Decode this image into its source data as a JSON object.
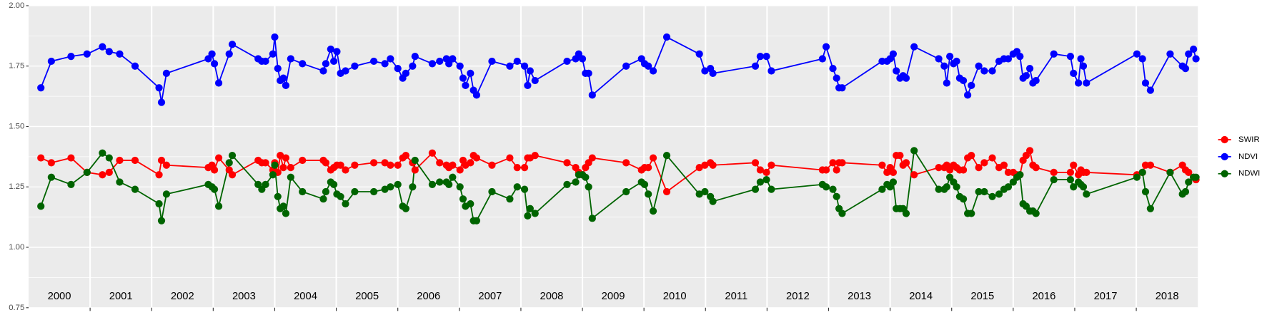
{
  "chart_data": {
    "type": "line",
    "xlim": [
      2000,
      2019
    ],
    "xticks": [
      2001,
      2002,
      2003,
      2004,
      2005,
      2006,
      2007,
      2008,
      2009,
      2010,
      2011,
      2012,
      2013,
      2014,
      2015,
      2016,
      2017,
      2018
    ],
    "year_labels": [
      "2000",
      "2001",
      "2002",
      "2003",
      "2004",
      "2005",
      "2006",
      "2007",
      "2008",
      "2009",
      "2010",
      "2011",
      "2012",
      "2013",
      "2014",
      "2015",
      "2016",
      "2017",
      "2018"
    ],
    "ylim": [
      0.75,
      2.0
    ],
    "yticks": [
      {
        "value": 0.75,
        "label": "0.75"
      },
      {
        "value": 1.0,
        "label": "1.00"
      },
      {
        "value": 1.25,
        "label": "1.25"
      },
      {
        "value": 1.5,
        "label": "1.50"
      },
      {
        "value": 1.75,
        "label": "1.75"
      },
      {
        "value": 2.0,
        "label": "2.00"
      }
    ],
    "grid": true,
    "legend": "right",
    "x": [
      2000.2,
      2000.37,
      2000.69,
      2000.95,
      2001.2,
      2001.31,
      2001.48,
      2001.73,
      2002.12,
      2002.16,
      2002.24,
      2002.92,
      2002.98,
      2003.02,
      2003.09,
      2003.26,
      2003.31,
      2003.73,
      2003.79,
      2003.85,
      2003.97,
      2004.0,
      2004.05,
      2004.09,
      2004.14,
      2004.18,
      2004.26,
      2004.45,
      2004.79,
      2004.83,
      2004.91,
      2004.96,
      2005.01,
      2005.07,
      2005.15,
      2005.3,
      2005.61,
      2005.79,
      2005.88,
      2006.0,
      2006.08,
      2006.13,
      2006.24,
      2006.28,
      2006.56,
      2006.68,
      2006.79,
      2006.83,
      2006.89,
      2007.01,
      2007.06,
      2007.1,
      2007.18,
      2007.23,
      2007.28,
      2007.53,
      2007.82,
      2007.94,
      2008.06,
      2008.11,
      2008.15,
      2008.23,
      2008.75,
      2008.89,
      2008.94,
      2009.0,
      2009.05,
      2009.1,
      2009.16,
      2009.71,
      2009.96,
      2010.01,
      2010.07,
      2010.15,
      2010.37,
      2010.9,
      2010.99,
      2011.08,
      2011.12,
      2011.81,
      2011.89,
      2011.99,
      2012.07,
      2012.9,
      2012.96,
      2013.07,
      2013.13,
      2013.17,
      2013.22,
      2013.87,
      2013.95,
      2014.0,
      2014.05,
      2014.1,
      2014.16,
      2014.21,
      2014.26,
      2014.39,
      2014.79,
      2014.88,
      2014.92,
      2014.97,
      2015.03,
      2015.08,
      2015.13,
      2015.19,
      2015.26,
      2015.32,
      2015.44,
      2015.53,
      2015.66,
      2015.77,
      2015.85,
      2015.92,
      2016.0,
      2016.06,
      2016.11,
      2016.16,
      2016.21,
      2016.27,
      2016.32,
      2016.37,
      2016.66,
      2016.93,
      2016.98,
      2017.06,
      2017.1,
      2017.14,
      2017.19,
      2018.01,
      2018.1,
      2018.15,
      2018.23,
      2018.55,
      2018.75,
      2018.8,
      2018.85,
      2018.93,
      2018.97
    ],
    "series": [
      {
        "name": "SWIR",
        "color": "#ff0000",
        "values": [
          1.37,
          1.35,
          1.37,
          1.31,
          1.3,
          1.31,
          1.36,
          1.36,
          1.3,
          1.36,
          1.34,
          1.33,
          1.34,
          1.32,
          1.37,
          1.32,
          1.3,
          1.36,
          1.35,
          1.35,
          1.32,
          1.35,
          1.31,
          1.38,
          1.33,
          1.37,
          1.33,
          1.36,
          1.36,
          1.35,
          1.32,
          1.33,
          1.34,
          1.34,
          1.32,
          1.34,
          1.35,
          1.35,
          1.34,
          1.34,
          1.37,
          1.38,
          1.35,
          1.32,
          1.39,
          1.35,
          1.34,
          1.33,
          1.34,
          1.32,
          1.36,
          1.34,
          1.35,
          1.38,
          1.37,
          1.34,
          1.37,
          1.33,
          1.33,
          1.37,
          1.37,
          1.38,
          1.35,
          1.33,
          1.31,
          1.3,
          1.33,
          1.35,
          1.37,
          1.35,
          1.32,
          1.33,
          1.33,
          1.37,
          1.23,
          1.33,
          1.34,
          1.35,
          1.34,
          1.35,
          1.32,
          1.31,
          1.34,
          1.32,
          1.32,
          1.35,
          1.32,
          1.35,
          1.35,
          1.34,
          1.31,
          1.33,
          1.31,
          1.38,
          1.38,
          1.34,
          1.35,
          1.3,
          1.33,
          1.33,
          1.34,
          1.32,
          1.34,
          1.33,
          1.32,
          1.32,
          1.37,
          1.38,
          1.33,
          1.35,
          1.37,
          1.33,
          1.34,
          1.31,
          1.31,
          1.3,
          1.3,
          1.36,
          1.38,
          1.4,
          1.34,
          1.33,
          1.31,
          1.31,
          1.34,
          1.3,
          1.32,
          1.31,
          1.31,
          1.3,
          1.31,
          1.34,
          1.34,
          1.31,
          1.34,
          1.32,
          1.31,
          1.29,
          1.28
        ]
      },
      {
        "name": "NDVI",
        "color": "#0000ff",
        "values": [
          1.66,
          1.77,
          1.79,
          1.8,
          1.83,
          1.81,
          1.8,
          1.75,
          1.66,
          1.6,
          1.72,
          1.78,
          1.8,
          1.76,
          1.68,
          1.8,
          1.84,
          1.78,
          1.77,
          1.77,
          1.8,
          1.87,
          1.74,
          1.69,
          1.7,
          1.67,
          1.78,
          1.76,
          1.73,
          1.76,
          1.82,
          1.77,
          1.81,
          1.72,
          1.73,
          1.75,
          1.77,
          1.76,
          1.78,
          1.74,
          1.7,
          1.72,
          1.75,
          1.79,
          1.76,
          1.77,
          1.78,
          1.76,
          1.78,
          1.75,
          1.7,
          1.67,
          1.72,
          1.65,
          1.63,
          1.77,
          1.75,
          1.77,
          1.75,
          1.67,
          1.73,
          1.69,
          1.77,
          1.78,
          1.8,
          1.78,
          1.72,
          1.72,
          1.63,
          1.75,
          1.78,
          1.76,
          1.75,
          1.73,
          1.87,
          1.8,
          1.73,
          1.74,
          1.72,
          1.75,
          1.79,
          1.79,
          1.73,
          1.78,
          1.83,
          1.74,
          1.7,
          1.66,
          1.66,
          1.77,
          1.77,
          1.78,
          1.8,
          1.73,
          1.7,
          1.71,
          1.7,
          1.83,
          1.78,
          1.75,
          1.68,
          1.79,
          1.76,
          1.77,
          1.7,
          1.69,
          1.63,
          1.67,
          1.75,
          1.73,
          1.73,
          1.77,
          1.78,
          1.78,
          1.8,
          1.81,
          1.79,
          1.7,
          1.71,
          1.74,
          1.68,
          1.69,
          1.8,
          1.79,
          1.72,
          1.68,
          1.78,
          1.75,
          1.68,
          1.8,
          1.78,
          1.68,
          1.65,
          1.8,
          1.75,
          1.74,
          1.8,
          1.82,
          1.78
        ]
      },
      {
        "name": "NDWI",
        "color": "#006400",
        "values": [
          1.17,
          1.29,
          1.26,
          1.31,
          1.39,
          1.37,
          1.27,
          1.24,
          1.18,
          1.11,
          1.22,
          1.26,
          1.25,
          1.24,
          1.17,
          1.35,
          1.38,
          1.26,
          1.24,
          1.26,
          1.3,
          1.34,
          1.21,
          1.16,
          1.17,
          1.14,
          1.29,
          1.23,
          1.2,
          1.23,
          1.27,
          1.26,
          1.22,
          1.21,
          1.18,
          1.23,
          1.23,
          1.24,
          1.25,
          1.26,
          1.17,
          1.16,
          1.25,
          1.36,
          1.26,
          1.27,
          1.27,
          1.26,
          1.29,
          1.25,
          1.2,
          1.17,
          1.18,
          1.11,
          1.11,
          1.23,
          1.2,
          1.25,
          1.24,
          1.13,
          1.16,
          1.14,
          1.26,
          1.27,
          1.3,
          1.3,
          1.29,
          1.25,
          1.12,
          1.23,
          1.27,
          1.26,
          1.22,
          1.15,
          1.38,
          1.22,
          1.23,
          1.21,
          1.19,
          1.24,
          1.27,
          1.28,
          1.24,
          1.26,
          1.25,
          1.24,
          1.21,
          1.16,
          1.14,
          1.24,
          1.26,
          1.25,
          1.27,
          1.16,
          1.16,
          1.16,
          1.14,
          1.4,
          1.24,
          1.24,
          1.25,
          1.29,
          1.27,
          1.25,
          1.21,
          1.2,
          1.14,
          1.14,
          1.23,
          1.23,
          1.21,
          1.22,
          1.24,
          1.25,
          1.27,
          1.29,
          1.3,
          1.18,
          1.17,
          1.15,
          1.15,
          1.14,
          1.28,
          1.28,
          1.25,
          1.27,
          1.26,
          1.25,
          1.22,
          1.29,
          1.31,
          1.23,
          1.16,
          1.31,
          1.22,
          1.23,
          1.27,
          1.29,
          1.29
        ]
      }
    ]
  }
}
